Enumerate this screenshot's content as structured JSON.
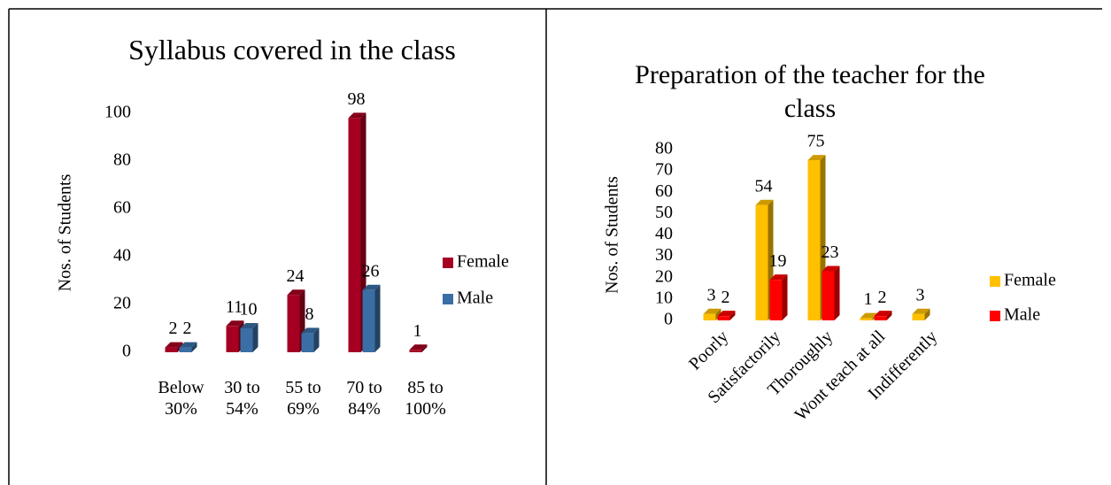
{
  "chart_data": [
    {
      "type": "bar",
      "title": "Syllabus covered in the class",
      "y_label": "Nos. of Students",
      "categories": [
        "Below 30%",
        "30 to 54%",
        "55 to 69%",
        "70 to 84%",
        "85 to 100%"
      ],
      "series": [
        {
          "name": "Female",
          "color": "#a50021",
          "values": [
            2,
            11,
            24,
            98,
            1
          ]
        },
        {
          "name": "Male",
          "color": "#3a6ea5",
          "values": [
            2,
            10,
            8,
            26,
            null
          ]
        }
      ],
      "ylim": [
        0,
        100
      ],
      "yticks": [
        0,
        20,
        40,
        60,
        80,
        100
      ],
      "legend": "right"
    },
    {
      "type": "bar",
      "title": "Preparation of the teacher for the class",
      "y_label": "Nos. of Students",
      "categories": [
        "Poorly",
        "Satisfactorily",
        "Thoroughly",
        "Wont teach at all",
        "Indifferently"
      ],
      "series": [
        {
          "name": "Female",
          "color": "#ffc000",
          "values": [
            3,
            54,
            75,
            1,
            3
          ]
        },
        {
          "name": "Male",
          "color": "#ff0000",
          "values": [
            2,
            19,
            23,
            2,
            null
          ]
        }
      ],
      "ylim": [
        0,
        80
      ],
      "yticks": [
        0,
        10,
        20,
        30,
        40,
        50,
        60,
        70,
        80
      ],
      "legend": "right"
    }
  ]
}
